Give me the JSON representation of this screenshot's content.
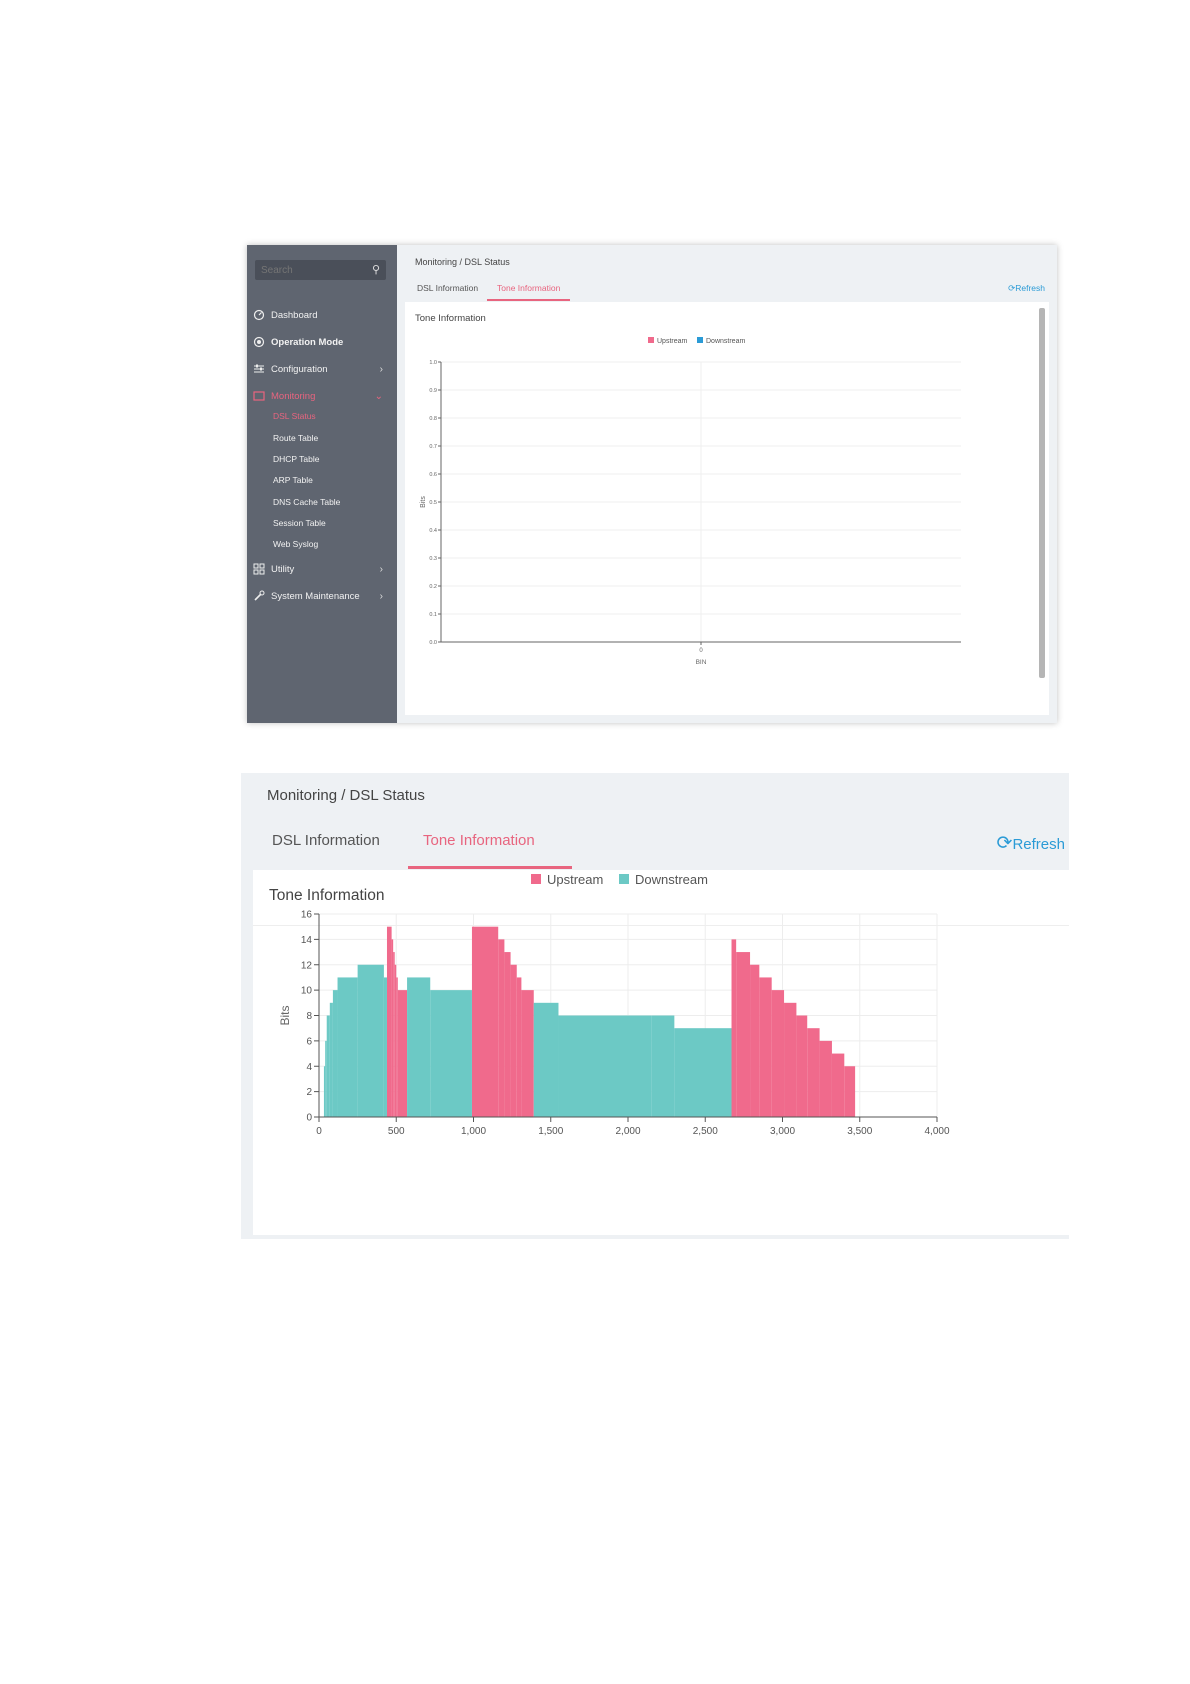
{
  "colors": {
    "upstream": "#f06a8c",
    "downstream": "#6cc9c5",
    "accent": "#e8657f",
    "link": "#2b9bd6",
    "sidebar": "#5f6570"
  },
  "sidebar": {
    "search_placeholder": "Search",
    "items": [
      {
        "label": "Dashboard",
        "icon": "dashboard-icon"
      },
      {
        "label": "Operation Mode",
        "icon": "operation-mode-icon"
      },
      {
        "label": "Configuration",
        "icon": "configuration-icon"
      },
      {
        "label": "Monitoring",
        "icon": "monitoring-icon"
      },
      {
        "label": "Utility",
        "icon": "utility-icon"
      },
      {
        "label": "System Maintenance",
        "icon": "system-maintenance-icon"
      }
    ],
    "subitems": [
      "DSL Status",
      "Route Table",
      "DHCP Table",
      "ARP Table",
      "DNS Cache Table",
      "Session Table",
      "Web Syslog"
    ]
  },
  "page": {
    "breadcrumb": "Monitoring / DSL Status",
    "tabs": [
      "DSL Information",
      "Tone Information"
    ],
    "refresh": "Refresh",
    "panel_title": "Tone Information"
  },
  "chart_empty": {
    "type": "bar",
    "ylabel": "Bits",
    "xlabel": "BIN",
    "ylim": [
      0,
      1.0
    ],
    "yticks": [
      "0.0",
      "0.1",
      "0.2",
      "0.3",
      "0.4",
      "0.5",
      "0.6",
      "0.7",
      "0.8",
      "0.9",
      "1.0"
    ],
    "xticks": [
      "0"
    ],
    "legend": [
      "Upstream",
      "Downstream"
    ]
  },
  "chart_data": {
    "type": "bar",
    "ylabel": "Bits",
    "xlabel": "",
    "xlim": [
      0,
      4000
    ],
    "ylim": [
      0,
      16
    ],
    "xticks": [
      "0",
      "500",
      "1,000",
      "1,500",
      "2,000",
      "2,500",
      "3,000",
      "3,500",
      "4,000"
    ],
    "yticks": [
      "0",
      "2",
      "4",
      "6",
      "8",
      "10",
      "12",
      "14",
      "16"
    ],
    "grid": true,
    "legend_position": "top-center",
    "series": [
      {
        "name": "Upstream",
        "segments": [
          {
            "from": 440,
            "to": 470,
            "bits": 15
          },
          {
            "from": 470,
            "to": 480,
            "bits": 14
          },
          {
            "from": 480,
            "to": 490,
            "bits": 13
          },
          {
            "from": 490,
            "to": 500,
            "bits": 12
          },
          {
            "from": 500,
            "to": 510,
            "bits": 11
          },
          {
            "from": 510,
            "to": 570,
            "bits": 10
          },
          {
            "from": 990,
            "to": 1160,
            "bits": 15
          },
          {
            "from": 1160,
            "to": 1200,
            "bits": 14
          },
          {
            "from": 1200,
            "to": 1240,
            "bits": 13
          },
          {
            "from": 1240,
            "to": 1280,
            "bits": 12
          },
          {
            "from": 1280,
            "to": 1310,
            "bits": 11
          },
          {
            "from": 1310,
            "to": 1390,
            "bits": 10
          },
          {
            "from": 2670,
            "to": 2700,
            "bits": 14
          },
          {
            "from": 2700,
            "to": 2790,
            "bits": 13
          },
          {
            "from": 2790,
            "to": 2850,
            "bits": 12
          },
          {
            "from": 2850,
            "to": 2930,
            "bits": 11
          },
          {
            "from": 2930,
            "to": 3010,
            "bits": 10
          },
          {
            "from": 3010,
            "to": 3090,
            "bits": 9
          },
          {
            "from": 3090,
            "to": 3160,
            "bits": 8
          },
          {
            "from": 3160,
            "to": 3240,
            "bits": 7
          },
          {
            "from": 3240,
            "to": 3320,
            "bits": 6
          },
          {
            "from": 3320,
            "to": 3400,
            "bits": 5
          },
          {
            "from": 3400,
            "to": 3470,
            "bits": 4
          }
        ]
      },
      {
        "name": "Downstream",
        "segments": [
          {
            "from": 32,
            "to": 40,
            "bits": 4
          },
          {
            "from": 40,
            "to": 50,
            "bits": 6
          },
          {
            "from": 50,
            "to": 70,
            "bits": 8
          },
          {
            "from": 70,
            "to": 90,
            "bits": 9
          },
          {
            "from": 90,
            "to": 120,
            "bits": 10
          },
          {
            "from": 120,
            "to": 250,
            "bits": 11
          },
          {
            "from": 250,
            "to": 420,
            "bits": 12
          },
          {
            "from": 420,
            "to": 440,
            "bits": 11
          },
          {
            "from": 570,
            "to": 720,
            "bits": 11
          },
          {
            "from": 720,
            "to": 990,
            "bits": 10
          },
          {
            "from": 1390,
            "to": 1550,
            "bits": 9
          },
          {
            "from": 1550,
            "to": 2150,
            "bits": 8
          },
          {
            "from": 2150,
            "to": 2300,
            "bits": 8
          },
          {
            "from": 2300,
            "to": 2670,
            "bits": 7
          }
        ]
      }
    ]
  }
}
